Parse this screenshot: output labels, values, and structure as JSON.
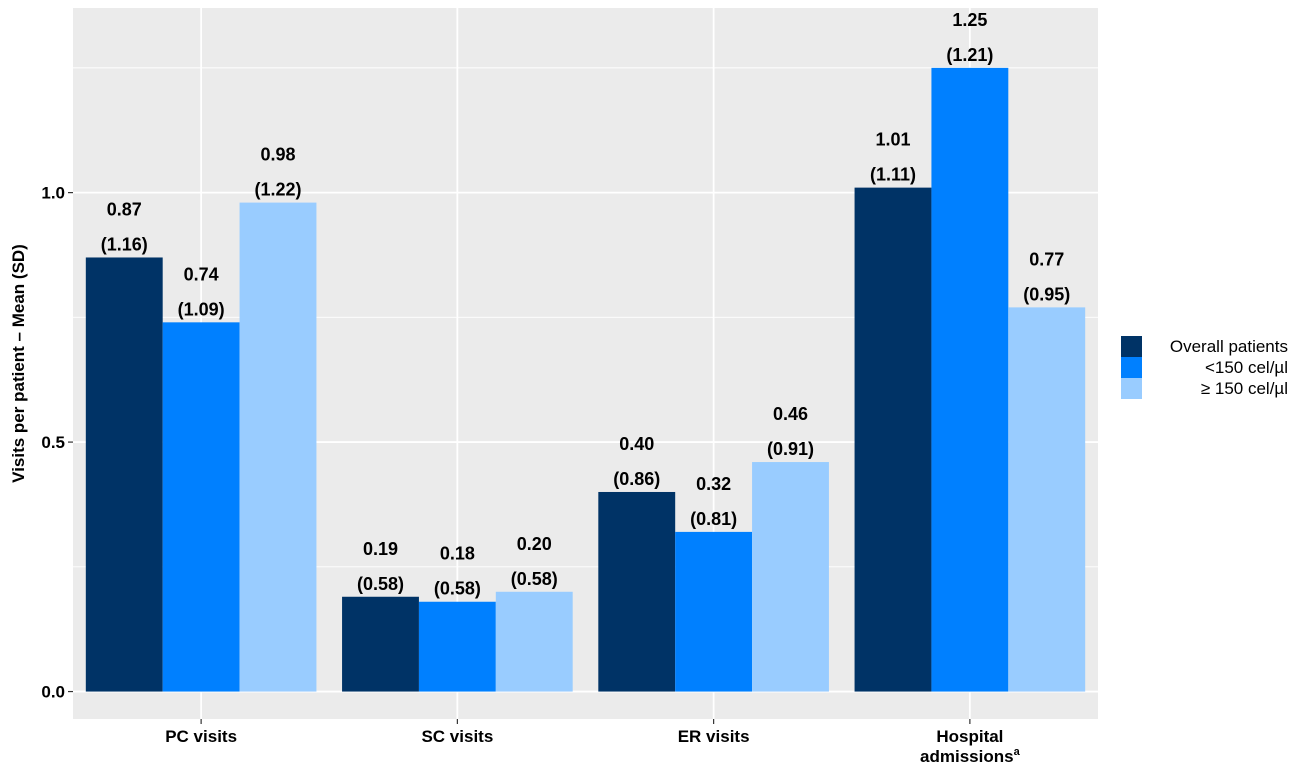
{
  "chart_data": {
    "type": "bar",
    "title": "",
    "xlabel": "",
    "ylabel": "Visits per patient – Mean (SD)",
    "ylim": [
      -0.055,
      1.37
    ],
    "yticks": [
      0.0,
      0.5,
      1.0
    ],
    "ytick_labels": [
      "0.0",
      "0.5",
      "1.0"
    ],
    "grid": true,
    "legend_position": "right",
    "categories": [
      {
        "lines": [
          "PC visits"
        ]
      },
      {
        "lines": [
          "SC visits"
        ]
      },
      {
        "lines": [
          "ER visits"
        ]
      },
      {
        "lines": [
          "Hospital",
          "admissions"
        ],
        "superscript": "a"
      }
    ],
    "series": [
      {
        "name": "Overall patients",
        "color": "#003366",
        "values": [
          0.87,
          0.19,
          0.4,
          1.01
        ],
        "sd": [
          "(1.16)",
          "(0.58)",
          "(0.86)",
          "(1.11)"
        ],
        "value_labels": [
          "0.87",
          "0.19",
          "0.40",
          "1.01"
        ]
      },
      {
        "name": "<150 cel/µl",
        "color": "#0080ff",
        "values": [
          0.74,
          0.18,
          0.32,
          1.25
        ],
        "sd": [
          "(1.09)",
          "(0.58)",
          "(0.81)",
          "(1.21)"
        ],
        "value_labels": [
          "0.74",
          "0.18",
          "0.32",
          "1.25"
        ]
      },
      {
        "name": "≥ 150 cel/µl",
        "color": "#99ccff",
        "values": [
          0.98,
          0.2,
          0.46,
          0.77
        ],
        "sd": [
          "(1.22)",
          "(0.58)",
          "(0.91)",
          "(0.95)"
        ],
        "value_labels": [
          "0.98",
          "0.20",
          "0.46",
          "0.77"
        ]
      }
    ],
    "colors": {
      "panel_background": "#ebebeb",
      "gridline": "#ffffff"
    }
  }
}
